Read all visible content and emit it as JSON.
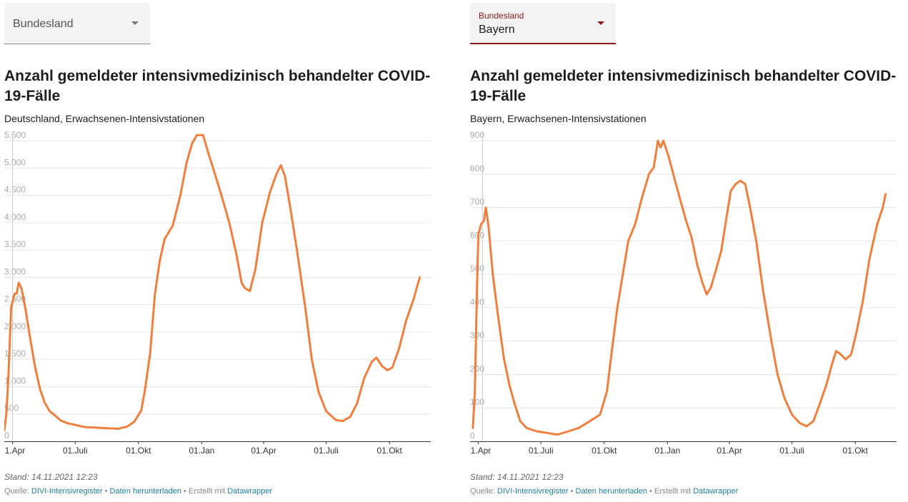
{
  "panels": [
    {
      "select": {
        "label": "Bundesland",
        "value": ""
      },
      "title": "Anzahl gemeldeter intensivmedizinisch behandelter COVID-19-Fälle",
      "subtitle": "Deutschland, Erwachsenen-Intensivstationen",
      "notes": "Stand: 14.11.2021 12:23",
      "source": {
        "prefix": "Quelle: ",
        "source_link": "DIVI-Intensivregister",
        "sep1": " • ",
        "download_link": "Daten herunterladen",
        "sep2": " • Erstellt mit ",
        "tool_link": "Datawrapper"
      }
    },
    {
      "select": {
        "label": "Bundesland",
        "value": "Bayern"
      },
      "title": "Anzahl gemeldeter intensivmedizinisch behandelter COVID-19-Fälle",
      "subtitle": "Bayern, Erwachsenen-Intensivstationen",
      "notes": "Stand: 14.11.2021 12:23",
      "source": {
        "prefix": "Quelle: ",
        "source_link": "DIVI-Intensivregister",
        "sep1": " • ",
        "download_link": "Daten herunterladen",
        "sep2": " • Erstellt mit ",
        "tool_link": "Datawrapper"
      }
    }
  ],
  "colors": {
    "line": "#f07e3c",
    "grid": "#e6e6e6",
    "axis": "#333333",
    "tick": "#aaaaaa",
    "accent": "#8b1a1a",
    "link": "#1d81a2"
  },
  "chart_data": [
    {
      "type": "line",
      "title": "Anzahl gemeldeter intensivmedizinisch behandelter COVID-19-Fälle",
      "subtitle": "Deutschland, Erwachsenen-Intensivstationen",
      "xlabel": "",
      "ylabel": "",
      "x_ticks": [
        {
          "date": "2020-04-01",
          "label": "01.Apr"
        },
        {
          "date": "2020-07-01",
          "label": "01.Juli"
        },
        {
          "date": "2020-10-01",
          "label": "01.Okt"
        },
        {
          "date": "2021-01-01",
          "label": "01.Jan"
        },
        {
          "date": "2021-04-01",
          "label": "01.Apr"
        },
        {
          "date": "2021-07-01",
          "label": "01.Juli"
        },
        {
          "date": "2021-10-01",
          "label": "01.Okt"
        }
      ],
      "xlim": [
        "2020-03-20",
        "2021-11-30"
      ],
      "marker_date": "2020-04-01",
      "y_ticks": [
        {
          "value": 0,
          "label": "0"
        },
        {
          "value": 500,
          "label": "500"
        },
        {
          "value": 1000,
          "label": "1.000"
        },
        {
          "value": 1500,
          "label": "1.500"
        },
        {
          "value": 2000,
          "label": "2.000"
        },
        {
          "value": 2500,
          "label": "2.500"
        },
        {
          "value": 3000,
          "label": "3.000"
        },
        {
          "value": 3500,
          "label": "3.500"
        },
        {
          "value": 4000,
          "label": "4.000"
        },
        {
          "value": 4500,
          "label": "4.500"
        },
        {
          "value": 5000,
          "label": "5.000"
        },
        {
          "value": 5500,
          "label": "5.500"
        }
      ],
      "ylim": [
        0,
        5500
      ],
      "grid": true,
      "series": [
        {
          "points": [
            [
              "2020-03-20",
              200
            ],
            [
              "2020-03-23",
              500
            ],
            [
              "2020-03-26",
              1200
            ],
            [
              "2020-03-30",
              2450
            ],
            [
              "2020-04-04",
              2700
            ],
            [
              "2020-04-07",
              2700
            ],
            [
              "2020-04-10",
              2900
            ],
            [
              "2020-04-14",
              2800
            ],
            [
              "2020-04-20",
              2400
            ],
            [
              "2020-04-27",
              1850
            ],
            [
              "2020-05-04",
              1350
            ],
            [
              "2020-05-11",
              950
            ],
            [
              "2020-05-18",
              700
            ],
            [
              "2020-05-25",
              550
            ],
            [
              "2020-06-01",
              480
            ],
            [
              "2020-06-10",
              380
            ],
            [
              "2020-06-20",
              330
            ],
            [
              "2020-07-01",
              300
            ],
            [
              "2020-07-15",
              260
            ],
            [
              "2020-08-01",
              250
            ],
            [
              "2020-08-15",
              240
            ],
            [
              "2020-09-01",
              230
            ],
            [
              "2020-09-15",
              270
            ],
            [
              "2020-09-25",
              360
            ],
            [
              "2020-10-05",
              560
            ],
            [
              "2020-10-10",
              900
            ],
            [
              "2020-10-18",
              1600
            ],
            [
              "2020-10-25",
              2700
            ],
            [
              "2020-11-01",
              3300
            ],
            [
              "2020-11-08",
              3700
            ],
            [
              "2020-11-20",
              3950
            ],
            [
              "2020-12-01",
              4500
            ],
            [
              "2020-12-10",
              5100
            ],
            [
              "2020-12-18",
              5450
            ],
            [
              "2020-12-25",
              5600
            ],
            [
              "2021-01-03",
              5600
            ],
            [
              "2021-01-10",
              5300
            ],
            [
              "2021-01-20",
              4900
            ],
            [
              "2021-02-01",
              4400
            ],
            [
              "2021-02-10",
              4000
            ],
            [
              "2021-02-20",
              3450
            ],
            [
              "2021-02-28",
              2900
            ],
            [
              "2021-03-05",
              2800
            ],
            [
              "2021-03-12",
              2750
            ],
            [
              "2021-03-20",
              3150
            ],
            [
              "2021-03-30",
              4000
            ],
            [
              "2021-04-10",
              4550
            ],
            [
              "2021-04-20",
              4900
            ],
            [
              "2021-04-26",
              5050
            ],
            [
              "2021-05-02",
              4850
            ],
            [
              "2021-05-10",
              4250
            ],
            [
              "2021-05-20",
              3450
            ],
            [
              "2021-06-01",
              2400
            ],
            [
              "2021-06-10",
              1500
            ],
            [
              "2021-06-20",
              900
            ],
            [
              "2021-07-01",
              550
            ],
            [
              "2021-07-15",
              390
            ],
            [
              "2021-07-25",
              370
            ],
            [
              "2021-08-05",
              450
            ],
            [
              "2021-08-15",
              700
            ],
            [
              "2021-08-25",
              1150
            ],
            [
              "2021-09-05",
              1450
            ],
            [
              "2021-09-12",
              1530
            ],
            [
              "2021-09-20",
              1380
            ],
            [
              "2021-09-28",
              1300
            ],
            [
              "2021-10-05",
              1350
            ],
            [
              "2021-10-15",
              1700
            ],
            [
              "2021-10-25",
              2200
            ],
            [
              "2021-11-05",
              2600
            ],
            [
              "2021-11-14",
              3000
            ]
          ]
        }
      ]
    },
    {
      "type": "line",
      "title": "Anzahl gemeldeter intensivmedizinisch behandelter COVID-19-Fälle",
      "subtitle": "Bayern, Erwachsenen-Intensivstationen",
      "xlabel": "",
      "ylabel": "",
      "x_ticks": [
        {
          "date": "2020-04-01",
          "label": "01.Apr"
        },
        {
          "date": "2020-07-01",
          "label": "01.Juli"
        },
        {
          "date": "2020-10-01",
          "label": "01.Okt"
        },
        {
          "date": "2021-01-01",
          "label": "01.Jan"
        },
        {
          "date": "2021-04-01",
          "label": "01.Apr"
        },
        {
          "date": "2021-07-01",
          "label": "01.Juli"
        },
        {
          "date": "2021-10-01",
          "label": "01.Okt"
        }
      ],
      "xlim": [
        "2020-03-20",
        "2021-11-30"
      ],
      "marker_date": "2020-04-07",
      "y_ticks": [
        {
          "value": 0,
          "label": "0"
        },
        {
          "value": 100,
          "label": "100"
        },
        {
          "value": 200,
          "label": "200"
        },
        {
          "value": 300,
          "label": "300"
        },
        {
          "value": 400,
          "label": "400"
        },
        {
          "value": 500,
          "label": "500"
        },
        {
          "value": 600,
          "label": "600"
        },
        {
          "value": 700,
          "label": "700"
        },
        {
          "value": 800,
          "label": "800"
        },
        {
          "value": 900,
          "label": "900"
        }
      ],
      "ylim": [
        0,
        900
      ],
      "grid": true,
      "series": [
        {
          "points": [
            [
              "2020-03-24",
              40
            ],
            [
              "2020-03-27",
              150
            ],
            [
              "2020-03-30",
              450
            ],
            [
              "2020-04-01",
              620
            ],
            [
              "2020-04-05",
              650
            ],
            [
              "2020-04-09",
              660
            ],
            [
              "2020-04-12",
              700
            ],
            [
              "2020-04-16",
              640
            ],
            [
              "2020-04-22",
              500
            ],
            [
              "2020-04-30",
              370
            ],
            [
              "2020-05-08",
              250
            ],
            [
              "2020-05-16",
              170
            ],
            [
              "2020-05-24",
              110
            ],
            [
              "2020-06-01",
              60
            ],
            [
              "2020-06-10",
              40
            ],
            [
              "2020-06-25",
              30
            ],
            [
              "2020-07-10",
              25
            ],
            [
              "2020-07-25",
              20
            ],
            [
              "2020-08-10",
              30
            ],
            [
              "2020-08-25",
              40
            ],
            [
              "2020-09-10",
              60
            ],
            [
              "2020-09-25",
              80
            ],
            [
              "2020-10-05",
              150
            ],
            [
              "2020-10-12",
              270
            ],
            [
              "2020-10-20",
              400
            ],
            [
              "2020-10-28",
              500
            ],
            [
              "2020-11-05",
              600
            ],
            [
              "2020-11-15",
              650
            ],
            [
              "2020-11-25",
              730
            ],
            [
              "2020-12-05",
              800
            ],
            [
              "2020-12-12",
              820
            ],
            [
              "2020-12-18",
              900
            ],
            [
              "2020-12-22",
              880
            ],
            [
              "2020-12-26",
              900
            ],
            [
              "2021-01-03",
              850
            ],
            [
              "2021-01-12",
              780
            ],
            [
              "2021-01-20",
              720
            ],
            [
              "2021-01-28",
              660
            ],
            [
              "2021-02-05",
              610
            ],
            [
              "2021-02-13",
              530
            ],
            [
              "2021-02-20",
              480
            ],
            [
              "2021-02-27",
              440
            ],
            [
              "2021-03-05",
              460
            ],
            [
              "2021-03-12",
              510
            ],
            [
              "2021-03-20",
              570
            ],
            [
              "2021-03-27",
              660
            ],
            [
              "2021-04-03",
              750
            ],
            [
              "2021-04-10",
              770
            ],
            [
              "2021-04-17",
              780
            ],
            [
              "2021-04-24",
              770
            ],
            [
              "2021-05-01",
              700
            ],
            [
              "2021-05-10",
              600
            ],
            [
              "2021-05-20",
              450
            ],
            [
              "2021-06-01",
              300
            ],
            [
              "2021-06-10",
              200
            ],
            [
              "2021-06-20",
              130
            ],
            [
              "2021-07-01",
              80
            ],
            [
              "2021-07-12",
              55
            ],
            [
              "2021-07-22",
              45
            ],
            [
              "2021-08-01",
              60
            ],
            [
              "2021-08-10",
              110
            ],
            [
              "2021-08-20",
              170
            ],
            [
              "2021-08-28",
              230
            ],
            [
              "2021-09-03",
              270
            ],
            [
              "2021-09-10",
              260
            ],
            [
              "2021-09-17",
              245
            ],
            [
              "2021-09-25",
              260
            ],
            [
              "2021-10-02",
              320
            ],
            [
              "2021-10-12",
              420
            ],
            [
              "2021-10-22",
              550
            ],
            [
              "2021-11-02",
              650
            ],
            [
              "2021-11-10",
              700
            ],
            [
              "2021-11-14",
              740
            ]
          ]
        }
      ]
    }
  ]
}
